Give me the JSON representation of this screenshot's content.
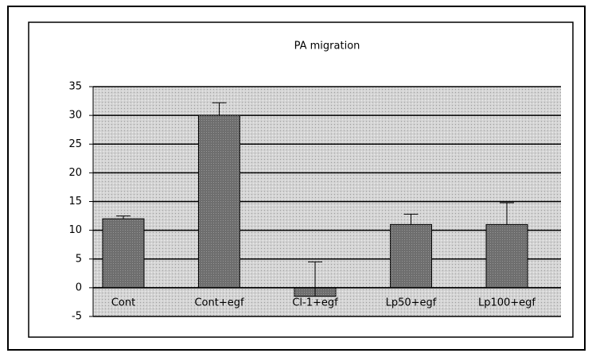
{
  "chart_data": {
    "type": "bar",
    "title": "PA migration",
    "categories": [
      "Cont",
      "Cont+egf",
      "Cl-1+egf",
      "Lp50+egf",
      "Lp100+egf"
    ],
    "values": [
      12,
      30,
      -1.5,
      11,
      11
    ],
    "errors": [
      0.5,
      2.2,
      6,
      1.8,
      3.8
    ],
    "color": "#6e6e6e",
    "ylim": [
      -5,
      35
    ],
    "yticks": [
      -5,
      0,
      5,
      10,
      15,
      20,
      25,
      30,
      35
    ],
    "grid": true
  }
}
